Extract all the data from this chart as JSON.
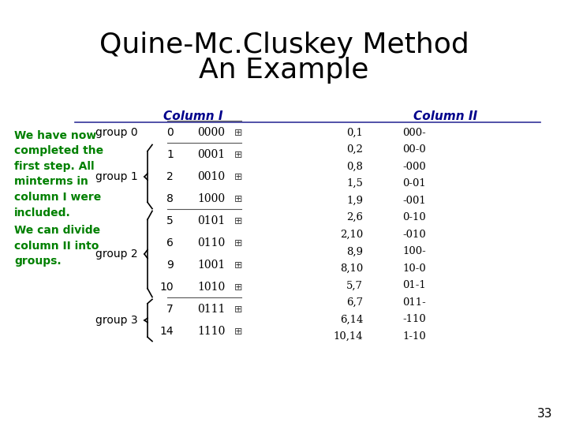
{
  "title_line1": "Quine-Mc.Cluskey Method",
  "title_line2": "An Example",
  "title_color": "#000000",
  "col1_header": "Column I",
  "col2_header": "Column II",
  "header_color": "#00008B",
  "left_text_color": "#008000",
  "left_text_para1": "We have now\ncompleted the\nfirst step. All\nminterms in\ncolumn I were\nincluded.",
  "left_text_para2": "We can divide\ncolumn II into\ngroups.",
  "col1_groups": [
    {
      "label": "group 0",
      "entries": [
        [
          "0",
          "0000"
        ]
      ]
    },
    {
      "label": "group 1",
      "entries": [
        [
          "1",
          "0001"
        ],
        [
          "2",
          "0010"
        ],
        [
          "8",
          "1000"
        ]
      ]
    },
    {
      "label": "group 2",
      "entries": [
        [
          "5",
          "0101"
        ],
        [
          "6",
          "0110"
        ],
        [
          "9",
          "1001"
        ],
        [
          "10",
          "1010"
        ]
      ]
    },
    {
      "label": "group 3",
      "entries": [
        [
          "7",
          "0111"
        ],
        [
          "14",
          "1110"
        ]
      ]
    }
  ],
  "col2_index": [
    "0,1",
    "0,2",
    "0,8",
    "1,5",
    "1,9",
    "2,6",
    "2,10",
    "8,9",
    "8,10",
    "5,7",
    "6,7",
    "6,14",
    "10,14"
  ],
  "col2_pattern": [
    "000-",
    "00-0",
    "-000",
    "0-01",
    "-001",
    "0-10",
    "-010",
    "100-",
    "10-0",
    "01-1",
    "011-",
    "-110",
    "1-10"
  ],
  "page_number": "33",
  "bg_color": "#ffffff",
  "line_color": "#333399"
}
